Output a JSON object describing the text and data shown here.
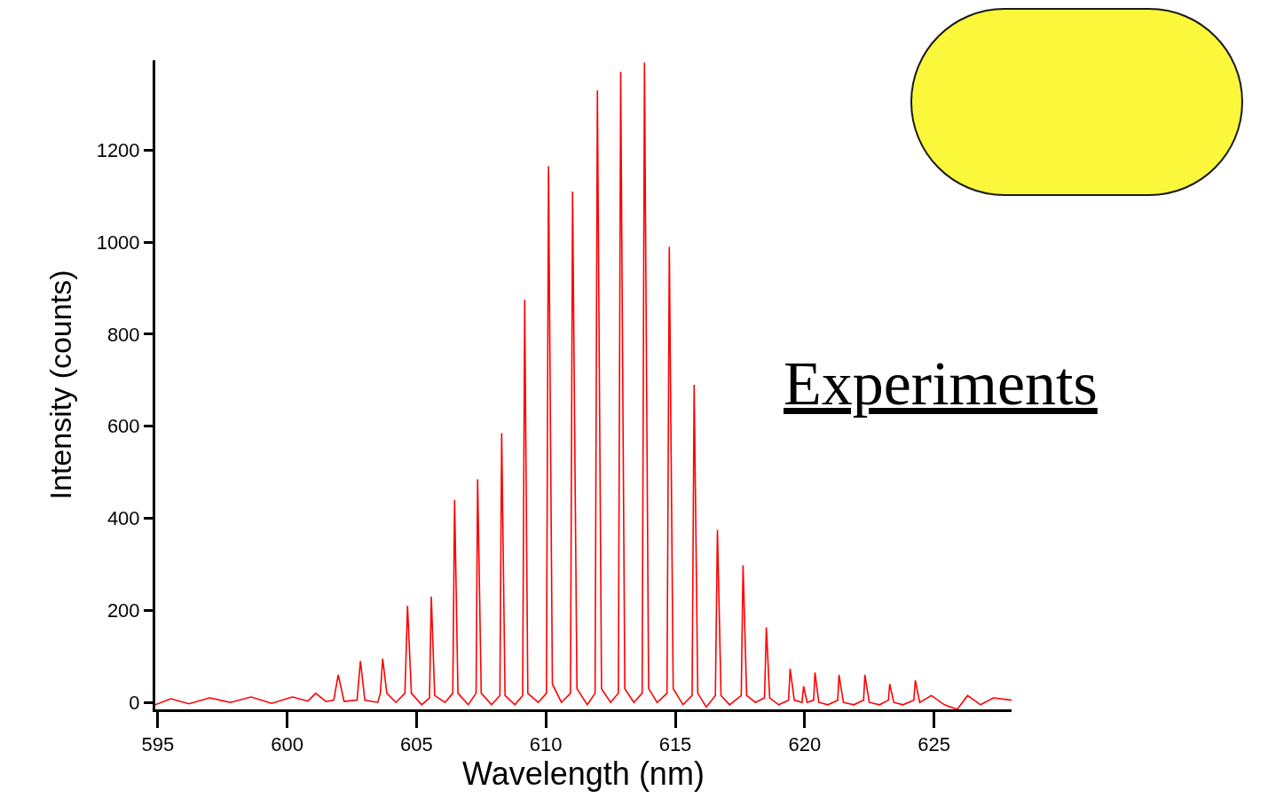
{
  "chart_data": {
    "type": "line",
    "xlabel": "Wavelength (nm)",
    "ylabel": "Intensity (counts)",
    "annotations": [
      "Experiments"
    ],
    "x": [
      594.9,
      595.5,
      596.2,
      597.0,
      597.8,
      598.6,
      599.4,
      600.2,
      600.8,
      601.1,
      601.5,
      601.8,
      601.97,
      602.2,
      602.7,
      602.83,
      603.0,
      603.5,
      603.6,
      603.69,
      603.85,
      604.2,
      604.55,
      604.65,
      604.8,
      605.2,
      605.5,
      605.57,
      605.7,
      606.1,
      606.4,
      606.47,
      606.6,
      607.0,
      607.3,
      607.36,
      607.5,
      607.9,
      608.22,
      608.29,
      608.42,
      608.8,
      609.1,
      609.18,
      609.3,
      609.7,
      610.02,
      610.1,
      610.25,
      610.6,
      610.95,
      611.03,
      611.2,
      611.6,
      611.9,
      611.99,
      612.15,
      612.5,
      612.8,
      612.89,
      613.05,
      613.4,
      613.72,
      613.81,
      613.97,
      614.3,
      614.68,
      614.77,
      614.92,
      615.3,
      615.65,
      615.73,
      615.87,
      616.2,
      616.55,
      616.63,
      616.77,
      617.1,
      617.55,
      617.62,
      617.76,
      618.1,
      618.45,
      618.52,
      618.65,
      619.0,
      619.38,
      619.44,
      619.6,
      619.9,
      619.96,
      620.1,
      620.35,
      620.4,
      620.55,
      620.9,
      621.28,
      621.33,
      621.5,
      621.9,
      622.28,
      622.33,
      622.5,
      622.9,
      623.24,
      623.29,
      623.45,
      623.8,
      624.22,
      624.28,
      624.45,
      624.9,
      625.4,
      625.9,
      626.3,
      626.8,
      627.3,
      628.0
    ],
    "series": [
      {
        "color": "#ff0000",
        "values": [
          -5,
          8,
          -3,
          10,
          0,
          12,
          -2,
          12,
          3,
          20,
          2,
          5,
          60,
          2,
          5,
          90,
          5,
          0,
          20,
          95,
          20,
          0,
          20,
          210,
          20,
          -5,
          10,
          230,
          15,
          0,
          20,
          440,
          20,
          -5,
          20,
          485,
          20,
          -5,
          15,
          585,
          15,
          -5,
          15,
          875,
          20,
          0,
          20,
          1165,
          40,
          0,
          20,
          1110,
          30,
          -5,
          20,
          1330,
          30,
          0,
          20,
          1370,
          30,
          0,
          20,
          1390,
          30,
          0,
          20,
          990,
          30,
          -5,
          15,
          690,
          20,
          -10,
          15,
          375,
          15,
          -5,
          15,
          298,
          15,
          0,
          10,
          163,
          10,
          -5,
          5,
          73,
          5,
          0,
          35,
          0,
          5,
          65,
          0,
          -5,
          5,
          60,
          0,
          -5,
          5,
          60,
          0,
          -5,
          5,
          40,
          0,
          -5,
          5,
          48,
          0,
          15,
          -5,
          -15,
          15,
          -5,
          10,
          5
        ]
      }
    ],
    "xlim": [
      594.9,
      628
    ],
    "ylim": [
      -15,
      1395
    ],
    "xticks": [
      595,
      600,
      605,
      610,
      615,
      620,
      625
    ],
    "yticks": [
      0,
      200,
      400,
      600,
      800,
      1000,
      1200
    ],
    "marker": "none",
    "line_style": "solid"
  }
}
